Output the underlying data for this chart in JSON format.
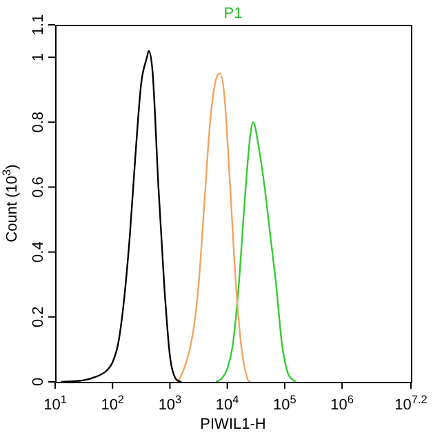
{
  "chart_data": {
    "type": "line",
    "title": "P1",
    "xlabel": "PIWIL1-H",
    "ylabel": "Count (10$^{3}$)",
    "log": "x",
    "xlim": [
      10,
      15848932
    ],
    "xticks": [
      {
        "value": 10,
        "label": "10$^{1}$"
      },
      {
        "value": 100,
        "label": "10$^{2}$"
      },
      {
        "value": 1000,
        "label": "10$^{3}$"
      },
      {
        "value": 10000,
        "label": "10$^{4}$"
      },
      {
        "value": 100000,
        "label": "10$^{5}$"
      },
      {
        "value": 1000000,
        "label": "10$^{6}$"
      },
      {
        "value": 15848932,
        "label": "10$^{7.2}$"
      }
    ],
    "ylim": [
      0,
      1.1
    ],
    "yticks": [
      0,
      0.2,
      0.4,
      0.6,
      0.8,
      1,
      1.1
    ],
    "grid": false,
    "legend": false,
    "marker": "none",
    "line_style": "solid",
    "series": [
      {
        "color": "#000000",
        "x": [
          12.6,
          31.6,
          50.1,
          79.4,
          100,
          126,
          158,
          200,
          251,
          316,
          398,
          427,
          501,
          631,
          794,
          1000,
          1259,
          1585
        ],
        "values": [
          0,
          0.005,
          0.015,
          0.035,
          0.06,
          0.12,
          0.25,
          0.45,
          0.7,
          0.92,
          1.0,
          1.02,
          0.95,
          0.6,
          0.3,
          0.08,
          0.01,
          0
        ]
      },
      {
        "color": "#f4a460",
        "x": [
          1318,
          1585,
          2512,
          3162,
          3981,
          5012,
          6310,
          7413,
          8913,
          11220,
          14125,
          17783,
          22387,
          25119
        ],
        "values": [
          0,
          0.02,
          0.15,
          0.3,
          0.55,
          0.8,
          0.93,
          0.95,
          0.88,
          0.6,
          0.3,
          0.1,
          0.01,
          0
        ]
      },
      {
        "color": "#33cc33",
        "x": [
          6310,
          7943,
          10000,
          12589,
          15849,
          19953,
          25119,
          28184,
          35481,
          44668,
          56234,
          70795,
          89125,
          112202,
          141254,
          158489
        ],
        "values": [
          0,
          0.01,
          0.04,
          0.12,
          0.3,
          0.55,
          0.76,
          0.8,
          0.72,
          0.6,
          0.45,
          0.3,
          0.12,
          0.03,
          0.005,
          0
        ]
      }
    ]
  }
}
